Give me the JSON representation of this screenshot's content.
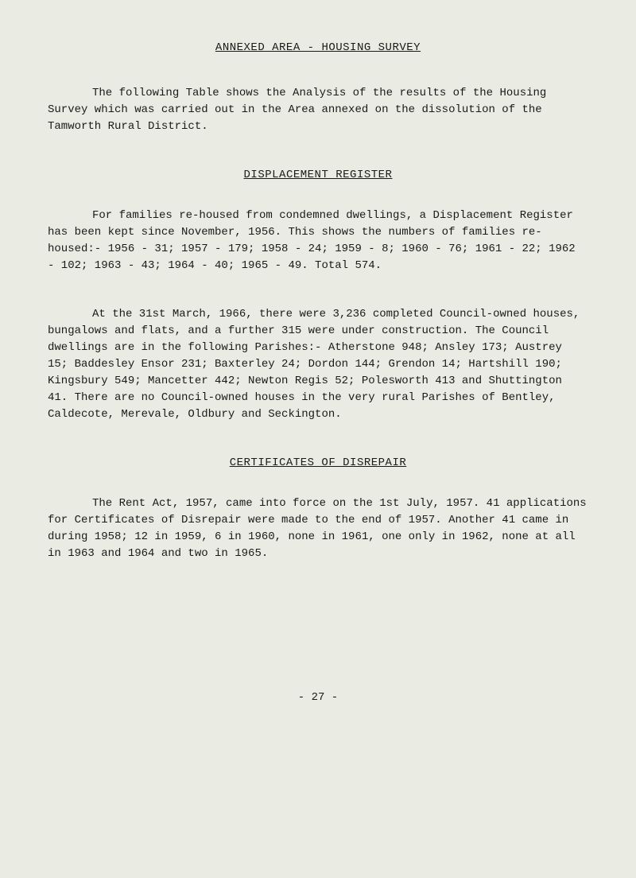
{
  "doc": {
    "title": "ANNEXED AREA - HOUSING SURVEY",
    "intro": "The following Table shows the Analysis of the results of the Housing Survey which was carried out in the Area annexed on the dissolution of the Tamworth Rural District.",
    "section1": {
      "heading": "DISPLACEMENT REGISTER",
      "p1": "For families re-housed from condemned dwellings, a Displacement Register has been kept since November, 1956. This shows the numbers of families re-housed:- 1956 - 31; 1957 - 179; 1958 - 24; 1959 - 8; 1960 - 76; 1961 - 22; 1962 - 102; 1963 - 43; 1964 - 40; 1965 - 49. Total 574.",
      "p2": "At the 31st March, 1966, there were 3,236 completed Council-owned houses, bungalows and flats, and a further 315 were under construction. The Council dwellings are in the following Parishes:- Atherstone 948; Ansley 173; Austrey 15; Baddesley Ensor 231; Baxterley 24; Dordon 144; Grendon 14; Hartshill 190; Kingsbury 549; Mancetter 442; Newton Regis 52; Polesworth 413 and Shuttington 41. There are no Council-owned houses in the very rural Parishes of Bentley, Caldecote, Merevale, Oldbury and Seckington."
    },
    "section2": {
      "heading": "CERTIFICATES OF DISREPAIR",
      "p1": "The Rent Act, 1957, came into force on the 1st July, 1957. 41 applications for Certificates of Disrepair were made to the end of 1957. Another 41 came in during 1958; 12 in 1959, 6 in 1960, none in 1961, one only in 1962, none at all in 1963 and 1964 and two in 1965."
    },
    "pageNumber": "- 27 -"
  }
}
